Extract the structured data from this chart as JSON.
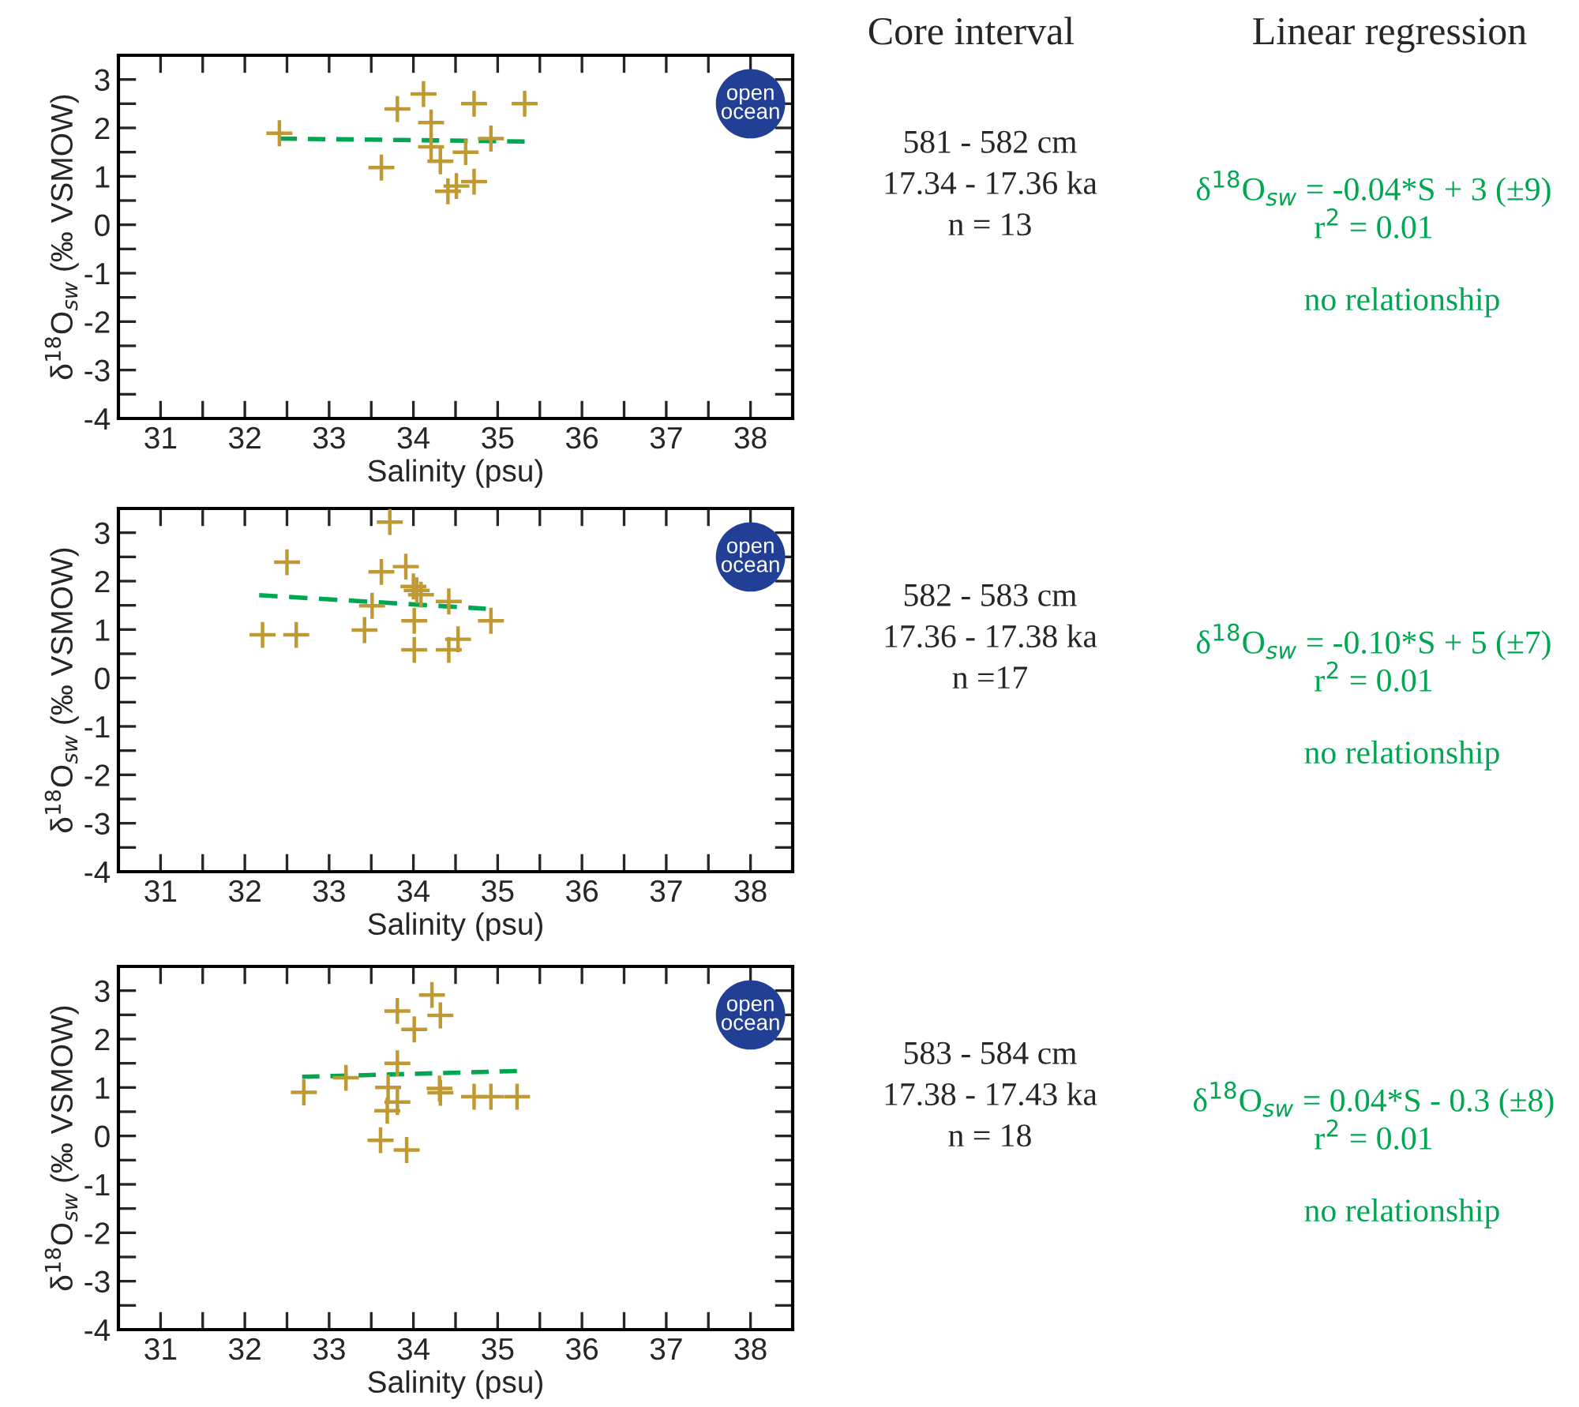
{
  "chart_data": [
    {
      "type": "scatter",
      "xlabel": "Salinity (psu)",
      "ylabel": "δ$^{18}$O$_{sw}$ (‰ VSMOW)",
      "xlim": [
        30.5,
        38.5
      ],
      "ylim": [
        -4,
        3.5
      ],
      "xticks": [
        31,
        {
          "value": 31.5,
          "label": null
        },
        32,
        {
          "value": 32.5,
          "label": null
        },
        33,
        {
          "value": 33.5,
          "label": null
        },
        34,
        {
          "value": 34.5,
          "label": null
        },
        35,
        {
          "value": 35.5,
          "label": null
        },
        36,
        {
          "value": 36.5,
          "label": null
        },
        37,
        {
          "value": 37.5,
          "label": null
        },
        38
      ],
      "yticks": [
        -4,
        {
          "value": -3.5,
          "label": null
        },
        -3,
        {
          "value": -2.5,
          "label": null
        },
        -2,
        {
          "value": -1.5,
          "label": null
        },
        -1,
        {
          "value": -0.5,
          "label": null
        },
        0,
        {
          "value": 0.5,
          "label": null
        },
        1,
        {
          "value": 1.5,
          "label": null
        },
        2,
        {
          "value": 2.5,
          "label": null
        },
        3
      ],
      "grid": false,
      "series": [
        {
          "type": "scatter",
          "marker": "cross",
          "color": "#bf9a32",
          "x": [
            32.41,
            33.62,
            33.81,
            34.12,
            34.21,
            34.21,
            34.32,
            34.41,
            34.51,
            34.62,
            34.72,
            34.72,
            34.92,
            35.32
          ],
          "values": [
            1.89,
            1.18,
            2.39,
            2.7,
            2.11,
            1.61,
            1.31,
            0.69,
            0.8,
            1.5,
            2.5,
            0.89,
            1.78,
            2.5
          ]
        },
        {
          "type": "line",
          "line_style": "dashed",
          "color": "#00a651",
          "x": [
            32.41,
            35.32
          ],
          "values": [
            1.78,
            1.72
          ]
        },
        {
          "type": "scatter",
          "name": "open ocean",
          "marker": "circle",
          "color": "#213f95",
          "x": [
            38
          ],
          "values": [
            2.5
          ]
        }
      ],
      "annotations": [
        "Core interval",
        "Linear regression",
        "581 - 582 cm\n17.34 - 17.36 ka\nn = 13",
        "δ$^{18}$O$_{sw}$ = -0.04*S + 3 (±9)\nr$^{2}$ = 0.01",
        "no relationship"
      ]
    },
    {
      "type": "scatter",
      "xlabel": "Salinity (psu)",
      "ylabel": "δ$^{18}$O$_{sw}$ (‰ VSMOW)",
      "xlim": [
        30.5,
        38.5
      ],
      "ylim": [
        -4,
        3.5
      ],
      "xticks": [
        31,
        {
          "value": 31.5,
          "label": null
        },
        32,
        {
          "value": 32.5,
          "label": null
        },
        33,
        {
          "value": 33.5,
          "label": null
        },
        34,
        {
          "value": 34.5,
          "label": null
        },
        35,
        {
          "value": 35.5,
          "label": null
        },
        36,
        {
          "value": 36.5,
          "label": null
        },
        37,
        {
          "value": 37.5,
          "label": null
        },
        38
      ],
      "yticks": [
        -4,
        {
          "value": -3.5,
          "label": null
        },
        -3,
        {
          "value": -2.5,
          "label": null
        },
        -2,
        {
          "value": -1.5,
          "label": null
        },
        -1,
        {
          "value": -0.5,
          "label": null
        },
        0,
        {
          "value": 0.5,
          "label": null
        },
        1,
        {
          "value": 1.5,
          "label": null
        },
        2,
        {
          "value": 2.5,
          "label": null
        },
        3
      ],
      "grid": false,
      "series": [
        {
          "type": "scatter",
          "marker": "cross",
          "color": "#bf9a32",
          "x": [
            33.72,
            32.5,
            33.62,
            33.91,
            34.0,
            34.09,
            33.51,
            34.42,
            34.01,
            34.92,
            32.21,
            32.61,
            33.42,
            34.01,
            34.42,
            34.53,
            34.04
          ],
          "values": [
            3.22,
            2.39,
            2.19,
            2.3,
            1.89,
            1.72,
            1.49,
            1.58,
            1.18,
            1.18,
            0.89,
            0.89,
            0.99,
            0.58,
            0.58,
            0.8,
            1.81
          ]
        },
        {
          "type": "line",
          "line_style": "dashed",
          "color": "#00a651",
          "x": [
            32.17,
            34.86
          ],
          "values": [
            1.71,
            1.43
          ]
        },
        {
          "type": "scatter",
          "name": "open ocean",
          "marker": "circle",
          "color": "#213f95",
          "x": [
            38
          ],
          "values": [
            2.5
          ]
        }
      ],
      "annotations": [
        "582 - 583 cm\n17.36 - 17.38 ka\nn =17",
        "δ$^{18}$O$_{sw}$ = -0.10*S + 5 (±7)\nr$^{2}$ = 0.01",
        "no relationship"
      ]
    },
    {
      "type": "scatter",
      "xlabel": "Salinity (psu)",
      "ylabel": "δ$^{18}$O$_{sw}$ (‰ VSMOW)",
      "xlim": [
        30.5,
        38.5
      ],
      "ylim": [
        -4,
        3.5
      ],
      "xticks": [
        31,
        {
          "value": 31.5,
          "label": null
        },
        32,
        {
          "value": 32.5,
          "label": null
        },
        33,
        {
          "value": 33.5,
          "label": null
        },
        34,
        {
          "value": 34.5,
          "label": null
        },
        35,
        {
          "value": 35.5,
          "label": null
        },
        36,
        {
          "value": 36.5,
          "label": null
        },
        37,
        {
          "value": 37.5,
          "label": null
        },
        38
      ],
      "yticks": [
        -4,
        {
          "value": -3.5,
          "label": null
        },
        -3,
        {
          "value": -2.5,
          "label": null
        },
        -2,
        {
          "value": -1.5,
          "label": null
        },
        -1,
        {
          "value": -0.5,
          "label": null
        },
        0,
        {
          "value": 0.5,
          "label": null
        },
        1,
        {
          "value": 1.5,
          "label": null
        },
        2,
        {
          "value": 2.5,
          "label": null
        },
        3
      ],
      "grid": false,
      "series": [
        {
          "type": "scatter",
          "marker": "cross",
          "color": "#bf9a32",
          "x": [
            34.22,
            33.81,
            34.32,
            34.01,
            33.81,
            33.2,
            32.7,
            33.7,
            33.81,
            33.69,
            34.31,
            34.32,
            34.72,
            34.92,
            35.23,
            33.61,
            33.92
          ],
          "values": [
            2.91,
            2.58,
            2.49,
            2.2,
            1.5,
            1.2,
            0.9,
            1.0,
            0.7,
            0.52,
            0.98,
            0.89,
            0.81,
            0.81,
            0.81,
            -0.09,
            -0.29
          ]
        },
        {
          "type": "line",
          "line_style": "dashed",
          "color": "#00a651",
          "x": [
            32.68,
            35.23
          ],
          "values": [
            1.22,
            1.34
          ]
        },
        {
          "type": "scatter",
          "name": "open ocean",
          "marker": "circle",
          "color": "#213f95",
          "x": [
            38
          ],
          "values": [
            2.5
          ]
        }
      ],
      "annotations": [
        "583 - 584 cm\n17.38 - 17.43 ka\nn = 18",
        "δ$^{18}$O$_{sw}$ = 0.04*S - 0.3 (±8)\nr$^{2}$ = 0.01",
        "no relationship"
      ]
    }
  ]
}
